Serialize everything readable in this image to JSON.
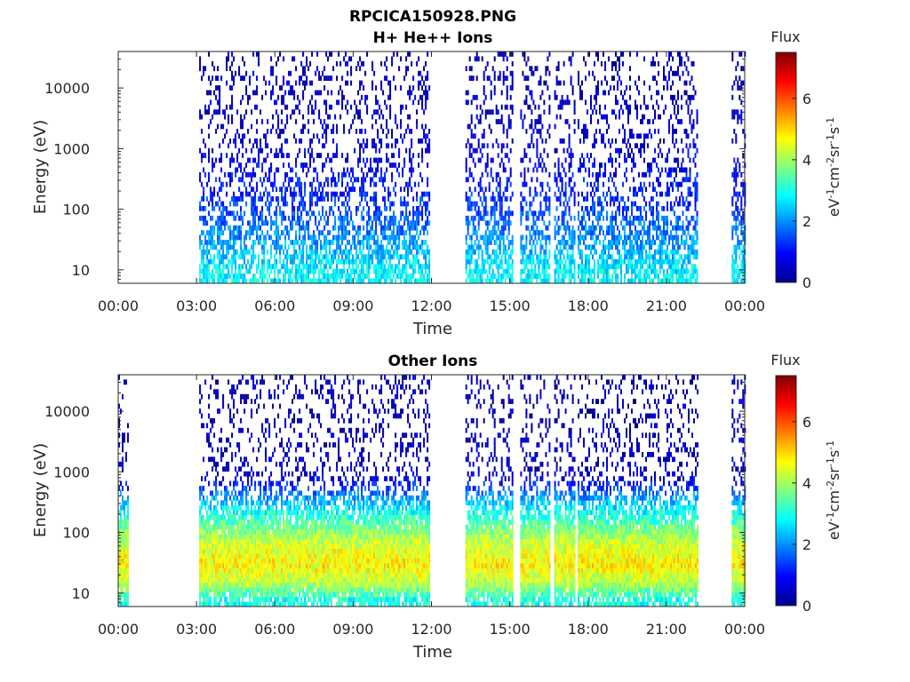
{
  "figure": {
    "title": "RPCICA150928.PNG"
  },
  "chart_data": [
    {
      "type": "heatmap",
      "title": "H+ He++ Ions",
      "xlabel": "Time",
      "ylabel": "Energy (eV)",
      "x_ticks": [
        "00:00",
        "03:00",
        "06:00",
        "09:00",
        "12:00",
        "15:00",
        "18:00",
        "21:00",
        "00:00"
      ],
      "x_range_hours": [
        0,
        24
      ],
      "y_scale": "log",
      "y_ticks": [
        "10",
        "100",
        "1000",
        "10000"
      ],
      "y_range": [
        6,
        40000
      ],
      "colorbar": {
        "title": "Flux",
        "label": "eV-1cm-2sr-1s-1",
        "ticks": [
          "0",
          "2",
          "4",
          "6"
        ],
        "range": [
          0,
          7.5
        ],
        "colormap": "jet"
      },
      "data_intervals_hours": [
        [
          3.1,
          11.9
        ],
        [
          13.3,
          15.1
        ],
        [
          15.4,
          16.5
        ],
        [
          16.7,
          17.5
        ],
        [
          17.6,
          21.6
        ],
        [
          21.6,
          22.2
        ],
        [
          23.5,
          24
        ]
      ],
      "flux_profile": [
        {
          "energy": 8,
          "flux": 2.8
        },
        {
          "energy": 12,
          "flux": 2.6
        },
        {
          "energy": 20,
          "flux": 2.3
        },
        {
          "energy": 35,
          "flux": 2.0
        },
        {
          "energy": 60,
          "flux": 1.7
        },
        {
          "energy": 100,
          "flux": 1.4
        },
        {
          "energy": 200,
          "flux": 1.1
        },
        {
          "energy": 500,
          "flux": 0.8
        },
        {
          "energy": 1000,
          "flux": 0.6
        },
        {
          "energy": 3000,
          "flux": 0.5
        },
        {
          "energy": 8000,
          "flux": 0.45
        },
        {
          "energy": 15000,
          "flux": 0.4
        },
        {
          "energy": 30000,
          "flux": 0.3
        }
      ]
    },
    {
      "type": "heatmap",
      "title": "Other Ions",
      "xlabel": "Time",
      "ylabel": "Energy (eV)",
      "x_ticks": [
        "00:00",
        "03:00",
        "06:00",
        "09:00",
        "12:00",
        "15:00",
        "18:00",
        "21:00",
        "00:00"
      ],
      "x_range_hours": [
        0,
        24
      ],
      "y_scale": "log",
      "y_ticks": [
        "10",
        "100",
        "1000",
        "10000"
      ],
      "y_range": [
        6,
        40000
      ],
      "colorbar": {
        "title": "Flux",
        "label": "eV-1cm-2sr-1s-1",
        "ticks": [
          "0",
          "2",
          "4",
          "6"
        ],
        "range": [
          0,
          7.5
        ],
        "colormap": "jet"
      },
      "data_intervals_hours": [
        [
          0,
          0.4
        ],
        [
          3.1,
          11.9
        ],
        [
          13.3,
          15.1
        ],
        [
          15.4,
          16.5
        ],
        [
          16.7,
          17.5
        ],
        [
          17.6,
          22.2
        ],
        [
          23.5,
          24
        ]
      ],
      "flux_profile": [
        {
          "energy": 8,
          "flux": 3.0
        },
        {
          "energy": 15,
          "flux": 4.2
        },
        {
          "energy": 30,
          "flux": 4.8
        },
        {
          "energy": 60,
          "flux": 4.4
        },
        {
          "energy": 100,
          "flux": 3.9
        },
        {
          "energy": 200,
          "flux": 3.0
        },
        {
          "energy": 400,
          "flux": 2.0
        },
        {
          "energy": 800,
          "flux": 0.6
        },
        {
          "energy": 3000,
          "flux": 0.4
        },
        {
          "energy": 10000,
          "flux": 0.35
        }
      ]
    }
  ]
}
